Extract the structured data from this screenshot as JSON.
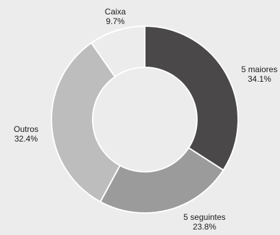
{
  "chart_data": {
    "type": "pie",
    "variant": "donut",
    "title": "",
    "slices": [
      {
        "label": "5 maiores",
        "value": 34.1,
        "display": "34.1%",
        "color": "#4a4849"
      },
      {
        "label": "5 seguintes",
        "value": 23.8,
        "display": "23.8%",
        "color": "#9b9b9b"
      },
      {
        "label": "Outros",
        "value": 32.4,
        "display": "32.4%",
        "color": "#bdbdbd"
      },
      {
        "label": "Caixa",
        "value": 9.7,
        "display": "9.7%",
        "color": "#ececec"
      }
    ]
  }
}
